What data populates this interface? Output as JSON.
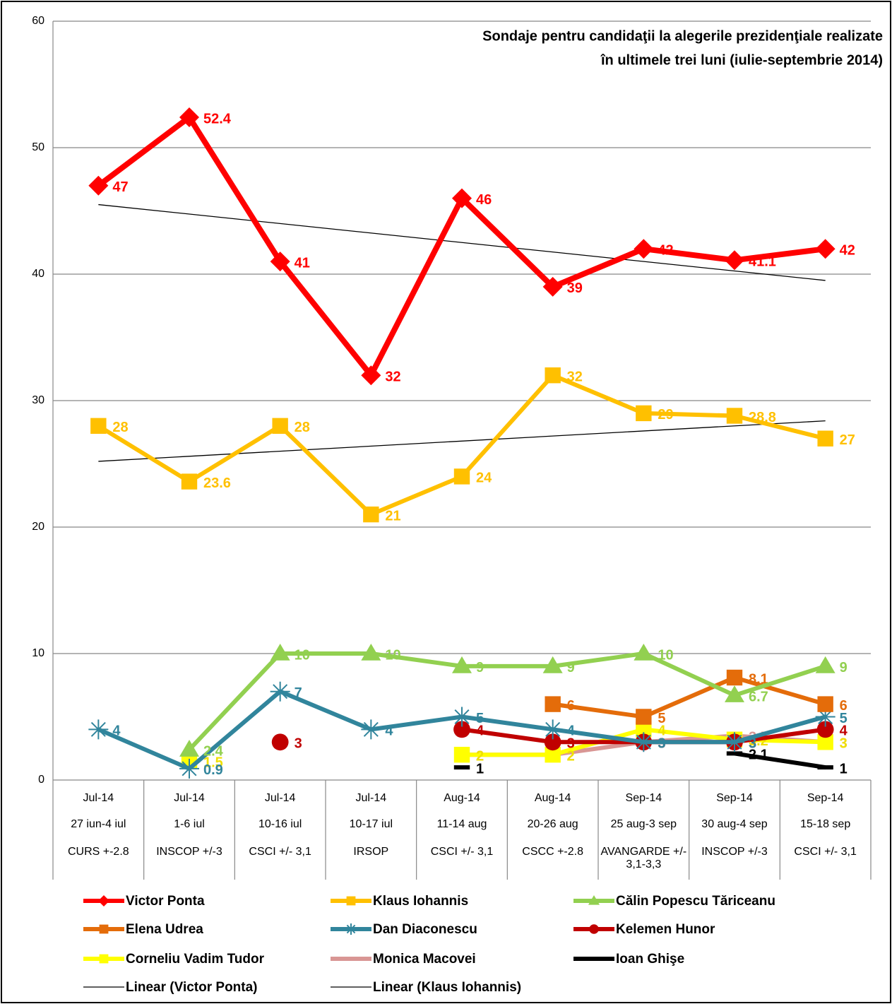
{
  "chart_data": {
    "type": "line",
    "title": [
      "Sondaje pentru candidaţii la alegerile prezidenţiale realizate",
      "în ultimele trei luni (iulie-septembrie 2014)"
    ],
    "categories": [
      "Jul-14",
      "Jul-14",
      "Jul-14",
      "Jul-14",
      "Aug-14",
      "Aug-14",
      "Sep-14",
      "Sep-14",
      "Sep-14"
    ],
    "category_dates": [
      "27 iun-4 iul",
      "1-6 iul",
      "10-16 iul",
      "10-17 iul",
      "11-14 aug",
      "20-26 aug",
      "25 aug-3 sep",
      "30 aug-4 sep",
      "15-18 sep"
    ],
    "category_pollsters": [
      "CURS +-2.8",
      "INSCOP  +/-3",
      "CSCI +/- 3,1",
      "IRSOP",
      "CSCI +/- 3,1",
      "CSCC +-2.8",
      "AVANGARDE +/- 3,1-3,3",
      "INSCOP  +/-3",
      "CSCI +/- 3,1"
    ],
    "ylim": [
      0,
      60
    ],
    "yticks": [
      0,
      10,
      20,
      30,
      40,
      50,
      60
    ],
    "grid": true,
    "series": [
      {
        "name": "Victor Ponta",
        "color": "#ff0000",
        "marker": "diamond",
        "values": [
          47,
          52.4,
          41,
          32,
          46,
          39,
          42,
          41.1,
          42
        ]
      },
      {
        "name": "Klaus Iohannis",
        "color": "#ffc000",
        "marker": "square",
        "values": [
          28,
          23.6,
          28,
          21,
          24,
          32,
          29,
          28.8,
          27
        ]
      },
      {
        "name": "Călin Popescu Tăriceanu",
        "color": "#92d050",
        "marker": "triangle",
        "values": [
          null,
          2.4,
          10,
          10,
          9,
          9,
          10,
          6.7,
          9
        ]
      },
      {
        "name": "Elena Udrea",
        "color": "#e46c0a",
        "marker": "square",
        "values": [
          null,
          null,
          null,
          null,
          null,
          6,
          5,
          8.1,
          6
        ]
      },
      {
        "name": "Dan Diaconescu",
        "color": "#31859c",
        "marker": "star",
        "values": [
          4,
          0.9,
          7,
          4,
          5,
          4,
          3,
          3,
          5
        ]
      },
      {
        "name": "Kelemen Hunor",
        "color": "#c00000",
        "marker": "circle",
        "values": [
          null,
          null,
          3,
          null,
          4,
          3,
          3,
          3,
          4
        ]
      },
      {
        "name": "Corneliu Vadim Tudor",
        "color": "#ffff00",
        "marker": "square",
        "values": [
          null,
          1.5,
          null,
          null,
          2,
          2,
          4,
          3.2,
          3
        ]
      },
      {
        "name": "Monica Macovei",
        "color": "#d99694",
        "marker": "none",
        "values": [
          null,
          null,
          null,
          null,
          2,
          2,
          3,
          3.5,
          3
        ]
      },
      {
        "name": "Ioan Ghişe",
        "color": "#000000",
        "marker": "dash",
        "values": [
          null,
          null,
          null,
          null,
          1,
          null,
          null,
          2.1,
          1
        ]
      }
    ],
    "trendlines": [
      {
        "name": "Linear (Victor Ponta)",
        "color": "#000000",
        "values": [
          45.5,
          39.5
        ]
      },
      {
        "name": "Linear (Klaus Iohannis)",
        "color": "#000000",
        "values": [
          25.2,
          28.4
        ]
      }
    ]
  }
}
